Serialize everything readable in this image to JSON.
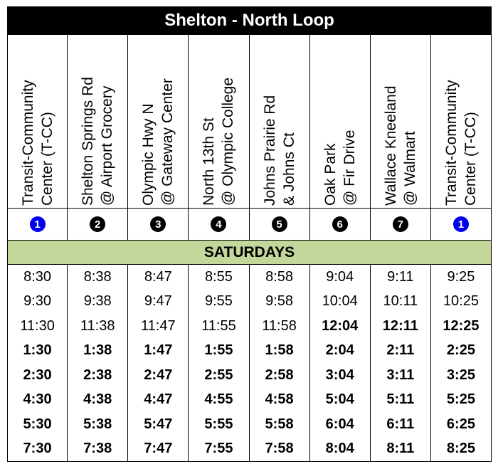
{
  "title": "Shelton - North Loop",
  "day_label": "SATURDAYS",
  "colors": {
    "header_bg": "#000000",
    "day_bg": "#c4d79b",
    "badge_blue": "#0000ee",
    "badge_black": "#000000"
  },
  "stops": [
    {
      "line1": "Transit-Community",
      "line2": "Center (T-CC)",
      "num": "1",
      "num_color": "#0000ee"
    },
    {
      "line1": "Shelton Springs Rd",
      "line2": "@ Airport Grocery",
      "num": "2",
      "num_color": "#000000"
    },
    {
      "line1": "Olympic Hwy N",
      "line2": "@ Gateway Center",
      "num": "3",
      "num_color": "#000000"
    },
    {
      "line1": "North 13th St",
      "line2": "@ Olympic College",
      "num": "4",
      "num_color": "#000000"
    },
    {
      "line1": "Johns Prairie Rd",
      "line2": "& Johns Ct",
      "num": "5",
      "num_color": "#000000"
    },
    {
      "line1": "Oak Park",
      "line2": "@ Fir Drive",
      "num": "6",
      "num_color": "#000000"
    },
    {
      "line1": "Wallace Kneeland",
      "line2": "@ Walmart",
      "num": "7",
      "num_color": "#000000"
    },
    {
      "line1": "Transit-Community",
      "line2": "Center (T-CC)",
      "num": "1",
      "num_color": "#0000ee"
    }
  ],
  "times": [
    {
      "values": [
        "8:30",
        "8:38",
        "8:47",
        "8:55",
        "8:58",
        "9:04",
        "9:11",
        "9:25"
      ],
      "bold": [
        false,
        false,
        false,
        false,
        false,
        false,
        false,
        false
      ]
    },
    {
      "values": [
        "9:30",
        "9:38",
        "9:47",
        "9:55",
        "9:58",
        "10:04",
        "10:11",
        "10:25"
      ],
      "bold": [
        false,
        false,
        false,
        false,
        false,
        false,
        false,
        false
      ]
    },
    {
      "values": [
        "11:30",
        "11:38",
        "11:47",
        "11:55",
        "11:58",
        "12:04",
        "12:11",
        "12:25"
      ],
      "bold": [
        false,
        false,
        false,
        false,
        false,
        true,
        true,
        true
      ]
    },
    {
      "values": [
        "1:30",
        "1:38",
        "1:47",
        "1:55",
        "1:58",
        "2:04",
        "2:11",
        "2:25"
      ],
      "bold": [
        true,
        true,
        true,
        true,
        true,
        true,
        true,
        true
      ]
    },
    {
      "values": [
        "2:30",
        "2:38",
        "2:47",
        "2:55",
        "2:58",
        "3:04",
        "3:11",
        "3:25"
      ],
      "bold": [
        true,
        true,
        true,
        true,
        true,
        true,
        true,
        true
      ]
    },
    {
      "values": [
        "4:30",
        "4:38",
        "4:47",
        "4:55",
        "4:58",
        "5:04",
        "5:11",
        "5:25"
      ],
      "bold": [
        true,
        true,
        true,
        true,
        true,
        true,
        true,
        true
      ]
    },
    {
      "values": [
        "5:30",
        "5:38",
        "5:47",
        "5:55",
        "5:58",
        "6:04",
        "6:11",
        "6:25"
      ],
      "bold": [
        true,
        true,
        true,
        true,
        true,
        true,
        true,
        true
      ]
    },
    {
      "values": [
        "7:30",
        "7:38",
        "7:47",
        "7:55",
        "7:58",
        "8:04",
        "8:11",
        "8:25"
      ],
      "bold": [
        true,
        true,
        true,
        true,
        true,
        true,
        true,
        true
      ]
    }
  ]
}
